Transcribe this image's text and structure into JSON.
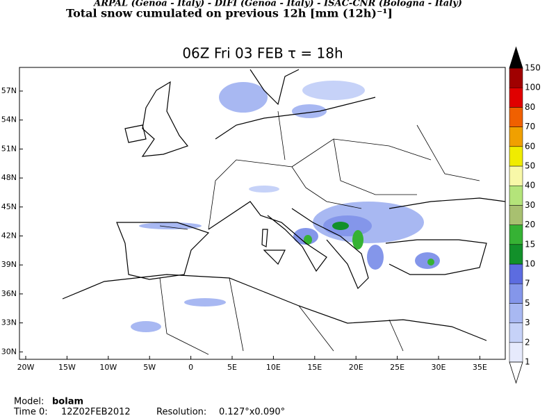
{
  "header": {
    "credits": "ARPAL (Genoa - Italy)  -  DIFI (Genoa - Italy)  -  ISAC-CNR (Bologna - Italy)",
    "title": "Total snow cumulated on previous 12h [mm (12h)⁻¹]"
  },
  "map": {
    "title": "06Z Fri 03 FEB  τ = 18h",
    "lat_labels": [
      "57N",
      "54N",
      "51N",
      "48N",
      "45N",
      "42N",
      "39N",
      "36N",
      "33N",
      "30N"
    ],
    "lon_labels": [
      "20W",
      "15W",
      "10W",
      "5W",
      "0",
      "5E",
      "10E",
      "15E",
      "20E",
      "25E",
      "30E",
      "35E"
    ]
  },
  "colorbar": {
    "labels": [
      "1",
      "2",
      "3",
      "5",
      "7",
      "10",
      "15",
      "20",
      "30",
      "40",
      "50",
      "60",
      "70",
      "80",
      "100",
      "150"
    ],
    "colors": [
      "#e6eafc",
      "#c6d2f8",
      "#a8b8f2",
      "#8496ea",
      "#5c6ce0",
      "#12902a",
      "#36b234",
      "#a8c070",
      "#b4e47a",
      "#f8f8a8",
      "#f0ec00",
      "#f0a000",
      "#f06000",
      "#e00000",
      "#a00000"
    ],
    "below_color": "#ffffff",
    "above_color": "#000000"
  },
  "footer": {
    "model_label": "Model:",
    "model": "bolam",
    "time_label": "Time 0:",
    "time": "12Z02FEB2012",
    "resolution_label": "Resolution:",
    "resolution": "0.127°x0.090°"
  }
}
